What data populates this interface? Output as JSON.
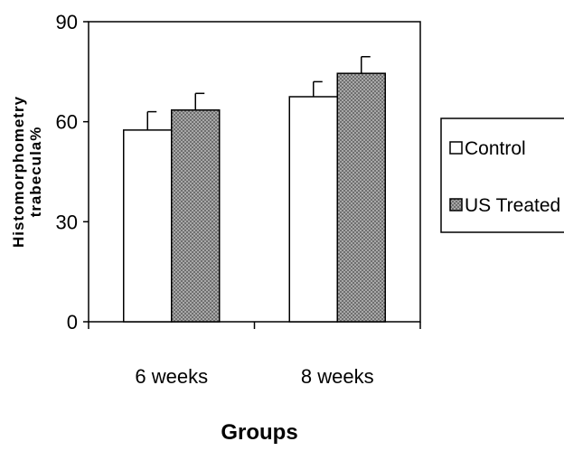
{
  "chart_data": {
    "type": "bar",
    "categories": [
      "6  weeks",
      "8  weeks"
    ],
    "series": [
      {
        "name": "Control",
        "values": [
          57.5,
          67.5
        ],
        "errors": [
          5.5,
          4.5
        ],
        "fill": "#ffffff"
      },
      {
        "name": "US Treated",
        "values": [
          63.5,
          74.5
        ],
        "errors": [
          5.0,
          5.0
        ],
        "fill": "#8c8c8c"
      }
    ],
    "xlabel": "Groups",
    "ylabel_lines": [
      "Histomorphometry",
      "trabecula%"
    ],
    "ylim": [
      0,
      90
    ],
    "yticks": [
      0,
      30,
      60,
      90
    ],
    "grid": false,
    "legend_position": "right"
  }
}
